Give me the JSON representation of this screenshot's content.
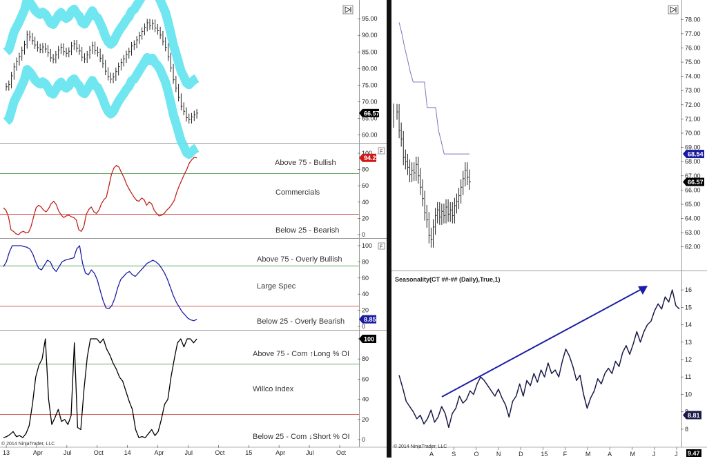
{
  "copyright_left": "© 2014 NinjaTrader, LLC",
  "copyright_right": "© 2014 NinjaTrader, LLC",
  "colors": {
    "price_band": "#5fe3ee",
    "commercials": "#c0241c",
    "large_spec": "#1c1ca8",
    "willco": "#000000",
    "upper_zone": "#2e8b2e",
    "lower_zone": "#c0241c",
    "seasonal_arrow": "#1c1ca8",
    "right_limit": "#7777bb"
  },
  "icons": [
    "pan-right-icon",
    "pan-right-icon",
    "format-f-icon",
    "format-f-icon"
  ],
  "time_axis": {
    "labels": [
      {
        "text": "13",
        "date": "2013-01"
      },
      {
        "text": "Apr",
        "date": "2013-04"
      },
      {
        "text": "Jul",
        "date": "2013-07"
      },
      {
        "text": "Oct",
        "date": "2013-10"
      },
      {
        "text": "14",
        "date": "2014-01"
      },
      {
        "text": "Apr",
        "date": "2014-04"
      },
      {
        "text": "Jul",
        "date": "2014-07"
      },
      {
        "text": "Oct",
        "date": "2014-10"
      },
      {
        "text": "15",
        "date": "2015-01"
      },
      {
        "text": "Apr",
        "date": "2015-04"
      },
      {
        "text": "Jul",
        "date": "2015-07"
      },
      {
        "text": "Oct",
        "date": "2015-10"
      }
    ]
  },
  "seasonal_axis": {
    "labels": [
      "A",
      "S",
      "O",
      "N",
      "D",
      "15",
      "F",
      "M",
      "A",
      "M",
      "J",
      "J"
    ]
  },
  "chart_data": [
    {
      "id": "price",
      "type": "ohlc",
      "y_ticks": [
        "95.00",
        "90.00",
        "85.00",
        "80.00",
        "75.00",
        "70.00",
        "65.00",
        "60.00"
      ],
      "ylim": [
        58,
        99
      ],
      "last_price": "66.57",
      "x_range": [
        "2013-01",
        "2014-08"
      ],
      "closes": [
        74.5,
        75.2,
        77.8,
        80.5,
        82.1,
        83.6,
        85.4,
        87.2,
        90.2,
        89.5,
        88.4,
        87.1,
        86.3,
        85.8,
        86.5,
        85.9,
        84.7,
        83.2,
        82.8,
        84.1,
        85.6,
        86.4,
        85.1,
        84.6,
        85.2,
        86.8,
        87.4,
        86.1,
        85.3,
        83.4,
        82.9,
        84.1,
        85.6,
        86.9,
        85.4,
        84.8,
        83.1,
        81.4,
        79.2,
        77.6,
        76.8,
        77.5,
        79.1,
        80.6,
        81.8,
        82.9,
        84.2,
        85.1,
        86.8,
        87.3,
        88.6,
        89.9,
        91.2,
        92.4,
        93.8,
        92.9,
        93.6,
        92.2,
        91.4,
        90.1,
        88.2,
        86.4,
        83.5,
        80.2,
        76.6,
        74.1,
        71.3,
        68.6,
        67.1,
        65.2,
        64.6,
        65.4,
        66.1,
        66.57
      ]
    },
    {
      "id": "commercials",
      "type": "line",
      "title": "Commercials",
      "upper_note": "Above 75 - Bullish",
      "lower_note": "Below 25 - Bearish",
      "y_ticks": [
        "100",
        "80",
        "60",
        "40",
        "20",
        "0"
      ],
      "ylim": [
        0,
        100
      ],
      "zones": [
        75,
        25
      ],
      "last_value": "94.29",
      "x_range": [
        "2013-01",
        "2014-08"
      ],
      "values": [
        33,
        30,
        22,
        6,
        4,
        1,
        0,
        3,
        4,
        2,
        3,
        10,
        22,
        33,
        36,
        34,
        30,
        28,
        32,
        38,
        41,
        37,
        29,
        24,
        21,
        23,
        24,
        22,
        21,
        18,
        6,
        4,
        10,
        25,
        31,
        34,
        28,
        26,
        30,
        38,
        43,
        46,
        60,
        74,
        82,
        85,
        83,
        76,
        70,
        62,
        56,
        51,
        46,
        42,
        41,
        45,
        43,
        36,
        40,
        38,
        30,
        26,
        23,
        24,
        26,
        30,
        33,
        37,
        42,
        52,
        60,
        67,
        74,
        80,
        88,
        92,
        95,
        94.29
      ]
    },
    {
      "id": "large_spec",
      "type": "line",
      "title": "Large Spec",
      "upper_note": "Above 75 - Overly Bullish",
      "lower_note": "Below 25 - Overly Bearish",
      "y_ticks": [
        "100",
        "80",
        "60",
        "40",
        "20",
        "0"
      ],
      "ylim": [
        0,
        100
      ],
      "zones": [
        75,
        25
      ],
      "last_value": "8.85",
      "x_range": [
        "2013-01",
        "2014-08"
      ],
      "values": [
        74,
        80,
        92,
        100,
        100,
        100,
        100,
        99,
        98,
        96,
        90,
        80,
        72,
        70,
        76,
        82,
        80,
        72,
        68,
        74,
        80,
        82,
        83,
        84,
        85,
        96,
        100,
        78,
        66,
        64,
        70,
        66,
        58,
        45,
        32,
        23,
        22,
        26,
        35,
        48,
        58,
        62,
        66,
        68,
        64,
        62,
        66,
        70,
        74,
        78,
        80,
        82,
        80,
        77,
        72,
        66,
        58,
        48,
        38,
        30,
        24,
        18,
        14,
        10,
        8,
        7,
        8.85
      ]
    },
    {
      "id": "willco",
      "type": "line",
      "title": "Willco Index",
      "upper_note": "Above 75 - Com ↑Long % OI",
      "lower_note": "Below 25 - Com ↓Short % OI",
      "y_ticks": [
        "100",
        "80",
        "60",
        "40",
        "20",
        "0"
      ],
      "ylim": [
        0,
        100
      ],
      "zones": [
        75,
        25
      ],
      "last_value": "100",
      "x_range": [
        "2013-01",
        "2014-08"
      ],
      "values": [
        2,
        3,
        5,
        8,
        3,
        4,
        2,
        6,
        14,
        35,
        62,
        74,
        80,
        100,
        40,
        15,
        22,
        30,
        18,
        20,
        15,
        24,
        96,
        12,
        10,
        50,
        82,
        100,
        100,
        100,
        96,
        100,
        90,
        84,
        76,
        70,
        62,
        58,
        48,
        38,
        30,
        10,
        2,
        3,
        2,
        6,
        10,
        4,
        8,
        20,
        35,
        40,
        62,
        80,
        96,
        100,
        92,
        100,
        100,
        96,
        100
      ]
    },
    {
      "id": "right_price",
      "type": "ohlc",
      "y_ticks": [
        "78.00",
        "77.00",
        "76.00",
        "75.00",
        "74.00",
        "73.00",
        "72.00",
        "71.00",
        "70.00",
        "69.00",
        "68.00",
        "67.00",
        "66.00",
        "65.00",
        "64.00",
        "63.00",
        "62.00"
      ],
      "ylim": [
        61.5,
        78.5
      ],
      "last_price": "66.57",
      "limit_price": "68.54",
      "limit_line": [
        77.8,
        77.0,
        76.0,
        75.2,
        74.3,
        73.6,
        73.6,
        73.6,
        73.6,
        73.6,
        71.8,
        71.8,
        71.8,
        71.8,
        70.2,
        69.4,
        68.54,
        68.54,
        68.54,
        68.54,
        68.54,
        68.54,
        68.54,
        68.54,
        68.54,
        68.54
      ],
      "closes": [
        71.5,
        70.2,
        69.6,
        68.3,
        68.0,
        67.6,
        67.1,
        67.4,
        67.2,
        67.8,
        67.0,
        66.2,
        65.4,
        64.4,
        63.9,
        62.8,
        62.5,
        63.4,
        64.2,
        64.6,
        64.1,
        64.5,
        64.2,
        64.8,
        64.3,
        64.6,
        64.2,
        64.9,
        65.2,
        65.6,
        66.2,
        66.8,
        67.4,
        66.9,
        66.57
      ]
    },
    {
      "id": "seasonality",
      "type": "line",
      "title": "Seasonality(CT ##-## (Daily),True,1)",
      "y_ticks": [
        "16",
        "15",
        "14",
        "13",
        "12",
        "11",
        "10",
        "9",
        "8"
      ],
      "ylim": [
        7.6,
        16.4
      ],
      "last_value": "8.81",
      "corner_value": "9.47",
      "x_range": [
        "2014-07",
        "2015-07"
      ],
      "values": [
        11.1,
        10.4,
        9.6,
        9.3,
        9.0,
        8.6,
        8.8,
        8.3,
        8.6,
        9.1,
        8.4,
        8.7,
        9.3,
        8.9,
        8.1,
        8.9,
        9.2,
        9.9,
        9.5,
        9.7,
        10.2,
        10.0,
        10.6,
        11.0,
        10.8,
        10.5,
        10.2,
        9.9,
        10.3,
        9.8,
        9.4,
        8.7,
        9.6,
        9.9,
        10.6,
        9.9,
        10.8,
        10.5,
        11.2,
        10.7,
        11.4,
        11.0,
        11.8,
        11.2,
        11.4,
        11.0,
        11.9,
        12.6,
        12.2,
        11.6,
        10.8,
        11.1,
        10.0,
        9.2,
        9.8,
        10.2,
        10.9,
        10.6,
        11.2,
        11.5,
        11.2,
        11.9,
        11.6,
        12.4,
        12.8,
        12.3,
        12.9,
        13.6,
        13.0,
        13.6,
        14.0,
        14.2,
        14.8,
        15.2,
        14.9,
        15.6,
        15.3,
        16.0,
        15.1,
        14.9
      ]
    }
  ]
}
